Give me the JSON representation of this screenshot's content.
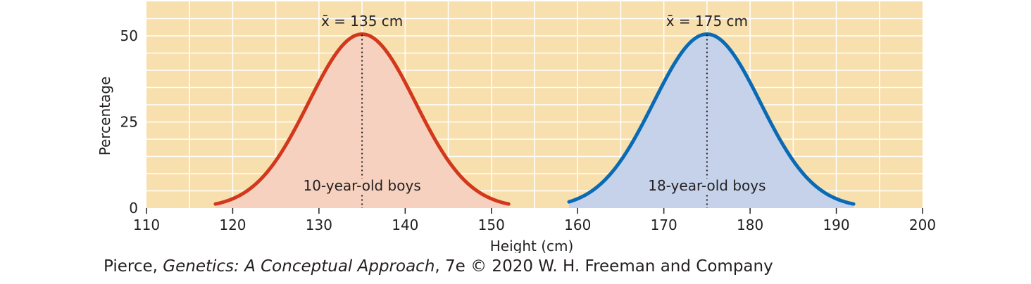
{
  "chart_data": {
    "type": "area",
    "xlabel": "Height (cm)",
    "ylabel": "Percentage",
    "xlim": [
      110,
      200
    ],
    "ylim": [
      0,
      60
    ],
    "x_ticks": [
      110,
      120,
      130,
      140,
      150,
      160,
      170,
      180,
      190,
      200
    ],
    "y_ticks": [
      0,
      25,
      50
    ],
    "grid": true,
    "series": [
      {
        "name": "10-year-old boys",
        "mean": 135,
        "mean_label": "x̄ = 135 cm",
        "peak": 50.5,
        "x": [
          118,
          120,
          122,
          124,
          126,
          128,
          130,
          132,
          134,
          135,
          136,
          138,
          140,
          142,
          144,
          146,
          148,
          150,
          152
        ],
        "values": [
          0.2,
          0.9,
          3.3,
          8.1,
          15.8,
          25.0,
          34.9,
          43.6,
          49.7,
          50.5,
          49.7,
          43.6,
          34.9,
          25.0,
          15.8,
          8.1,
          3.3,
          0.9,
          0.2
        ],
        "line_color": "#d2381c",
        "fill_color": "#f6d1bf"
      },
      {
        "name": "18-year-old boys",
        "mean": 175,
        "mean_label": "x̄ = 175 cm",
        "peak": 50.5,
        "x": [
          159,
          161,
          163,
          165,
          167,
          169,
          171,
          173,
          175,
          177,
          179,
          181,
          183,
          185,
          187,
          189,
          191,
          192
        ],
        "values": [
          0.3,
          1.4,
          4.5,
          10.6,
          19.6,
          30.2,
          40.3,
          47.6,
          50.5,
          47.6,
          40.3,
          30.2,
          19.6,
          10.6,
          4.5,
          1.4,
          0.3,
          0.1
        ],
        "line_color": "#0a6ab4",
        "fill_color": "#c5d2ea"
      }
    ],
    "plot_background": "#f8dfae",
    "grid_color": "#ffffff"
  },
  "credit": {
    "author": "Pierce, ",
    "book": "Genetics: A Conceptual Approach",
    "rest": ", 7e © 2020 W. H. Freeman and Company"
  }
}
